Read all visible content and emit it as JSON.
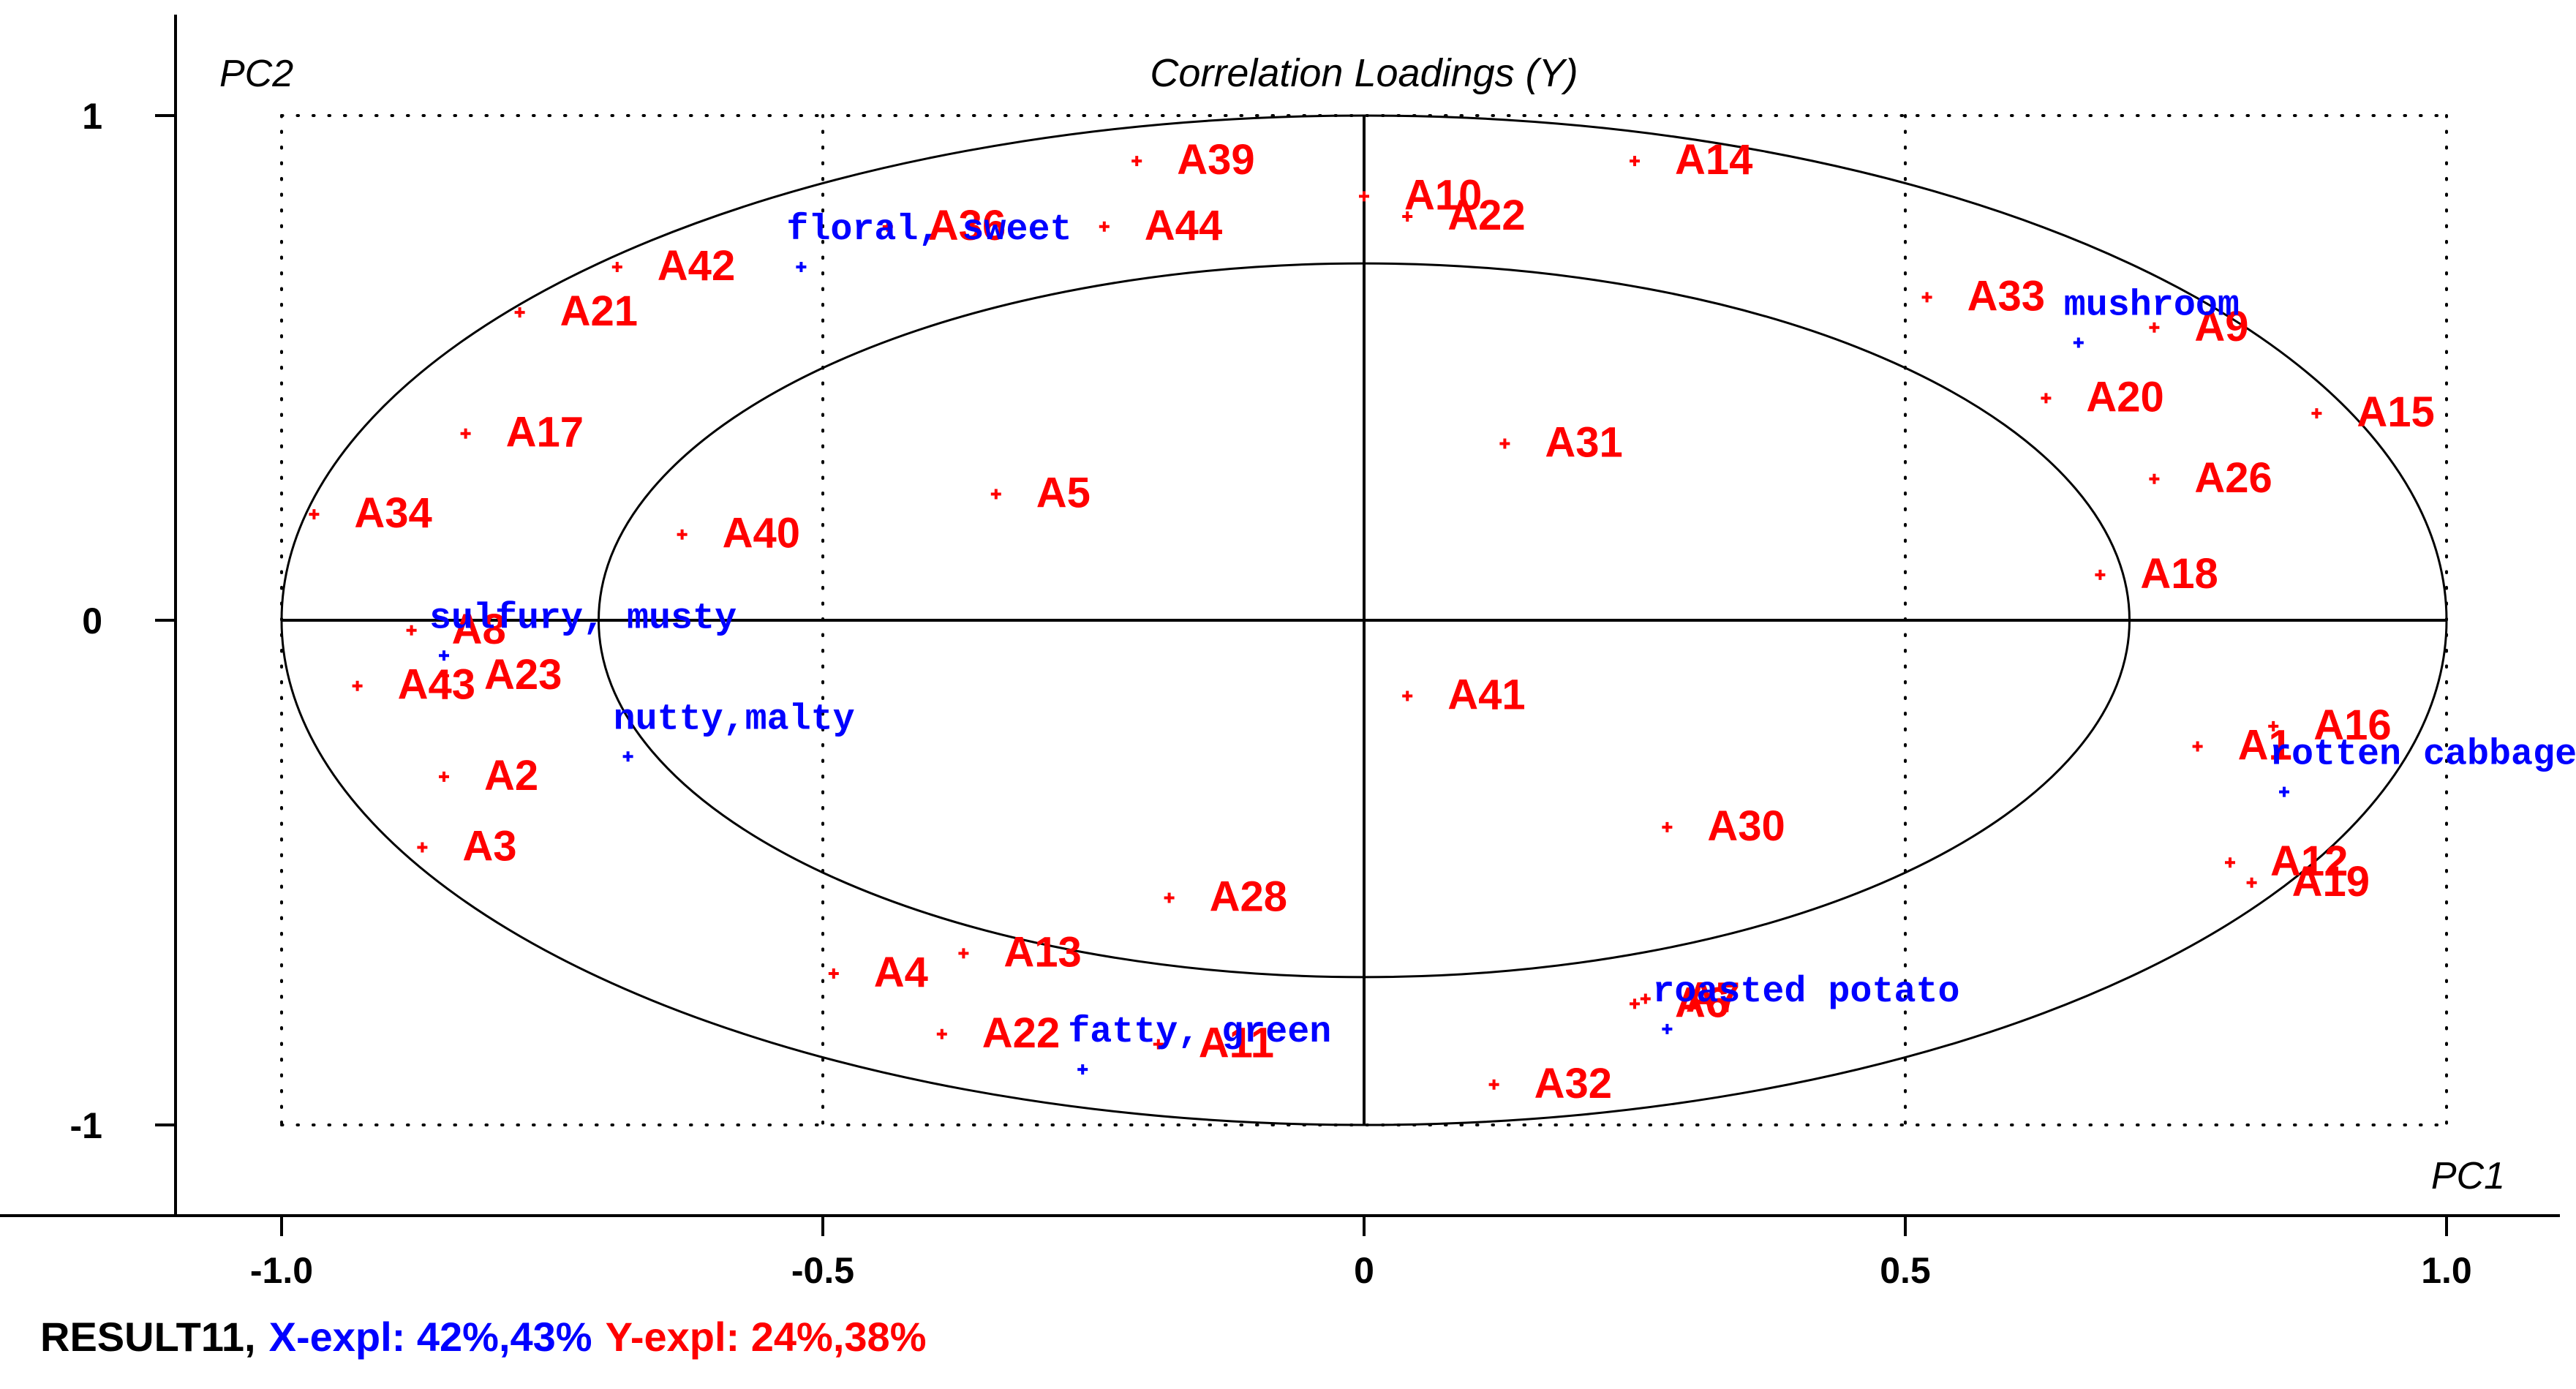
{
  "chart_data": {
    "type": "scatter",
    "title": "Correlation Loadings (Y)",
    "xlabel": "PC1",
    "ylabel": "PC2",
    "xlim": [
      -1.0,
      1.0
    ],
    "ylim": [
      -1.0,
      1.0
    ],
    "xticks": [
      "-1.0",
      "-0.5",
      "0",
      "0.5",
      "1.0"
    ],
    "yticks": [
      "1",
      "0",
      "-1"
    ],
    "ellipses": [
      {
        "radius": 1.0
      },
      {
        "radius": 0.7071
      }
    ],
    "colors": {
      "y_series": "#ff0000",
      "x_series": "#0000ff",
      "axis": "#000000"
    },
    "series": [
      {
        "name": "Y",
        "color": "#ff0000",
        "points": [
          {
            "label": "A39",
            "x": -0.21,
            "y": 0.91
          },
          {
            "label": "A10",
            "x": 0.0,
            "y": 0.84
          },
          {
            "label": "A22",
            "x": 0.04,
            "y": 0.8
          },
          {
            "label": "A14",
            "x": 0.25,
            "y": 0.91
          },
          {
            "label": "A36",
            "x": -0.44,
            "y": 0.78
          },
          {
            "label": "A44",
            "x": -0.24,
            "y": 0.78
          },
          {
            "label": "A42",
            "x": -0.69,
            "y": 0.7
          },
          {
            "label": "A21",
            "x": -0.78,
            "y": 0.61
          },
          {
            "label": "A17",
            "x": -0.83,
            "y": 0.37
          },
          {
            "label": "A34",
            "x": -0.97,
            "y": 0.21
          },
          {
            "label": "A40",
            "x": -0.63,
            "y": 0.17
          },
          {
            "label": "A5",
            "x": -0.34,
            "y": 0.25
          },
          {
            "label": "A31",
            "x": 0.13,
            "y": 0.35
          },
          {
            "label": "A33",
            "x": 0.52,
            "y": 0.64
          },
          {
            "label": "A9",
            "x": 0.73,
            "y": 0.58
          },
          {
            "label": "A20",
            "x": 0.63,
            "y": 0.44
          },
          {
            "label": "A15",
            "x": 0.88,
            "y": 0.41
          },
          {
            "label": "A26",
            "x": 0.73,
            "y": 0.28
          },
          {
            "label": "A18",
            "x": 0.68,
            "y": 0.09
          },
          {
            "label": "A8",
            "x": -0.88,
            "y": -0.02
          },
          {
            "label": "A43",
            "x": -0.93,
            "y": -0.13
          },
          {
            "label": "A23",
            "x": -0.85,
            "y": -0.11
          },
          {
            "label": "A41",
            "x": 0.04,
            "y": -0.15
          },
          {
            "label": "A2",
            "x": -0.85,
            "y": -0.31
          },
          {
            "label": "A3",
            "x": -0.87,
            "y": -0.45
          },
          {
            "label": "A1",
            "x": 0.77,
            "y": -0.25
          },
          {
            "label": "A16",
            "x": 0.84,
            "y": -0.21
          },
          {
            "label": "A30",
            "x": 0.28,
            "y": -0.41
          },
          {
            "label": "A12",
            "x": 0.8,
            "y": -0.48
          },
          {
            "label": "A19",
            "x": 0.82,
            "y": -0.52
          },
          {
            "label": "A28",
            "x": -0.18,
            "y": -0.55
          },
          {
            "label": "A13",
            "x": -0.37,
            "y": -0.66
          },
          {
            "label": "A4",
            "x": -0.49,
            "y": -0.7
          },
          {
            "label": "A22",
            "x": -0.39,
            "y": -0.82
          },
          {
            "label": "A11",
            "x": -0.19,
            "y": -0.84
          },
          {
            "label": "A32",
            "x": 0.12,
            "y": -0.92
          },
          {
            "label": "A7",
            "x": 0.26,
            "y": -0.75
          },
          {
            "label": "A6",
            "x": 0.25,
            "y": -0.76
          }
        ]
      },
      {
        "name": "X",
        "color": "#0000ff",
        "points": [
          {
            "label": "floral, sweet",
            "x": -0.52,
            "y": 0.7
          },
          {
            "label": "mushroom",
            "x": 0.66,
            "y": 0.55
          },
          {
            "label": "sulfury, musty",
            "x": -0.85,
            "y": -0.07
          },
          {
            "label": "nutty,malty",
            "x": -0.68,
            "y": -0.27
          },
          {
            "label": "rotten cabbage,corn",
            "x": 0.85,
            "y": -0.34
          },
          {
            "label": "fatty, green",
            "x": -0.26,
            "y": -0.89
          },
          {
            "label": "roasted potato",
            "x": 0.28,
            "y": -0.81
          }
        ]
      }
    ]
  },
  "footer": {
    "result": "RESULT11,",
    "x_expl": "X-expl: 42%,43%",
    "y_expl": "Y-expl: 24%,38%"
  }
}
